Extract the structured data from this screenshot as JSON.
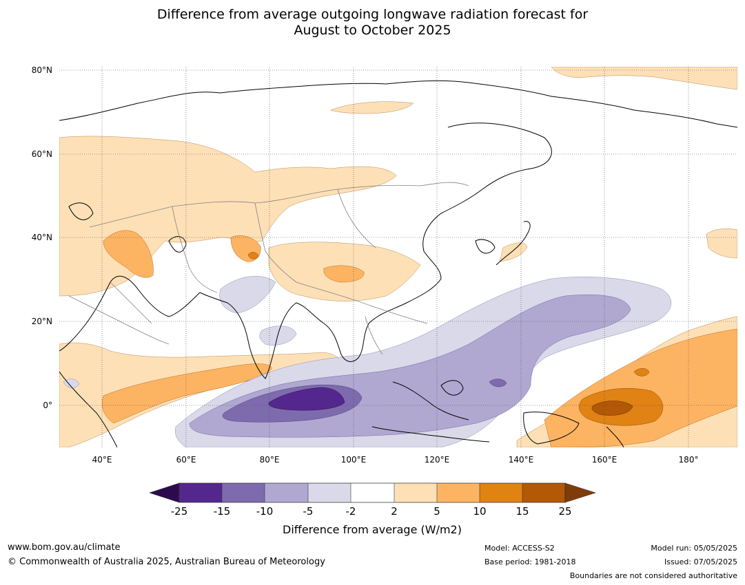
{
  "title": {
    "line1": "Difference from average outgoing longwave radiation forecast for",
    "line2": "August to October 2025"
  },
  "map": {
    "lat_labels": [
      "80°N",
      "60°N",
      "40°N",
      "20°N",
      "0°"
    ],
    "lon_labels": [
      "40°E",
      "60°E",
      "80°E",
      "100°E",
      "120°E",
      "140°E",
      "160°E",
      "180°"
    ]
  },
  "colorbar": {
    "title": "Difference from average (W/m2)",
    "ticks": [
      "-25",
      "-15",
      "-10",
      "-5",
      "-2",
      "2",
      "5",
      "10",
      "15",
      "25"
    ],
    "colors": {
      "lt_-25": "#2d0a4e",
      "-25_-15": "#54278f",
      "-15_-10": "#7e6bad",
      "-10_-5": "#b0a8d1",
      "-5_-2": "#d9d9ea",
      "-2_2": "#ffffff",
      "2_5": "#fee0b6",
      "5_10": "#fdb462",
      "10_15": "#e08214",
      "15_25": "#b35806",
      "gt_25": "#7f3b08"
    }
  },
  "footer": {
    "website": "www.bom.gov.au/climate",
    "copyright": "© Commonwealth of Australia 2025, Australian Bureau of Meteorology",
    "model": "Model: ACCESS-S2",
    "base_period": "Base period: 1981-2018",
    "model_run": "Model run: 05/05/2025",
    "issued": "Issued: 07/05/2025",
    "disclaimer": "Boundaries are not considered authoritative"
  }
}
